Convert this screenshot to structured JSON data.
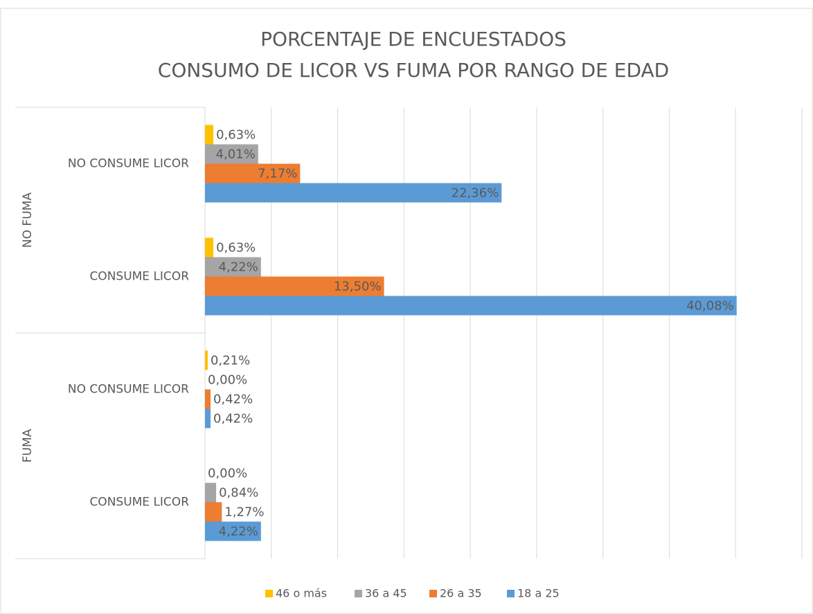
{
  "chart_data": {
    "type": "hbar",
    "title": "PORCENTAJE DE ENCUESTADOS",
    "subtitle": "CONSUMO DE LICOR VS FUMA POR RANGO DE EDAD",
    "groups": [
      {
        "name": "NO FUMA",
        "categories": [
          "NO CONSUME LICOR",
          "CONSUME LICOR"
        ]
      },
      {
        "name": "FUMA",
        "categories": [
          "NO CONSUME LICOR",
          "CONSUME LICOR"
        ]
      }
    ],
    "series": [
      {
        "name": "46 o más",
        "color": "#ffc000",
        "values": [
          0.63,
          0.63,
          0.21,
          0.0
        ],
        "value_labels": [
          "0,63%",
          "0,63%",
          "0,21%",
          "0,00%"
        ]
      },
      {
        "name": "36 a 45",
        "color": "#a5a5a5",
        "values": [
          4.01,
          4.22,
          0.0,
          0.84
        ],
        "value_labels": [
          "4,01%",
          "4,22%",
          "0,00%",
          "0,84%"
        ]
      },
      {
        "name": "26 a 35",
        "color": "#ed7d31",
        "values": [
          7.17,
          13.5,
          0.42,
          1.27
        ],
        "value_labels": [
          "7,17%",
          "13,50%",
          "0,42%",
          "1,27%"
        ]
      },
      {
        "name": "18 a 25",
        "color": "#5b9bd5",
        "values": [
          22.36,
          40.08,
          0.42,
          4.22
        ],
        "value_labels": [
          "22,36%",
          "40,08%",
          "0,42%",
          "4,22%"
        ]
      }
    ],
    "xlim": [
      0,
      45
    ],
    "xticks": [
      0,
      5,
      10,
      15,
      20,
      25,
      30,
      35,
      40,
      45
    ],
    "grid": true,
    "legend": "bottom"
  }
}
